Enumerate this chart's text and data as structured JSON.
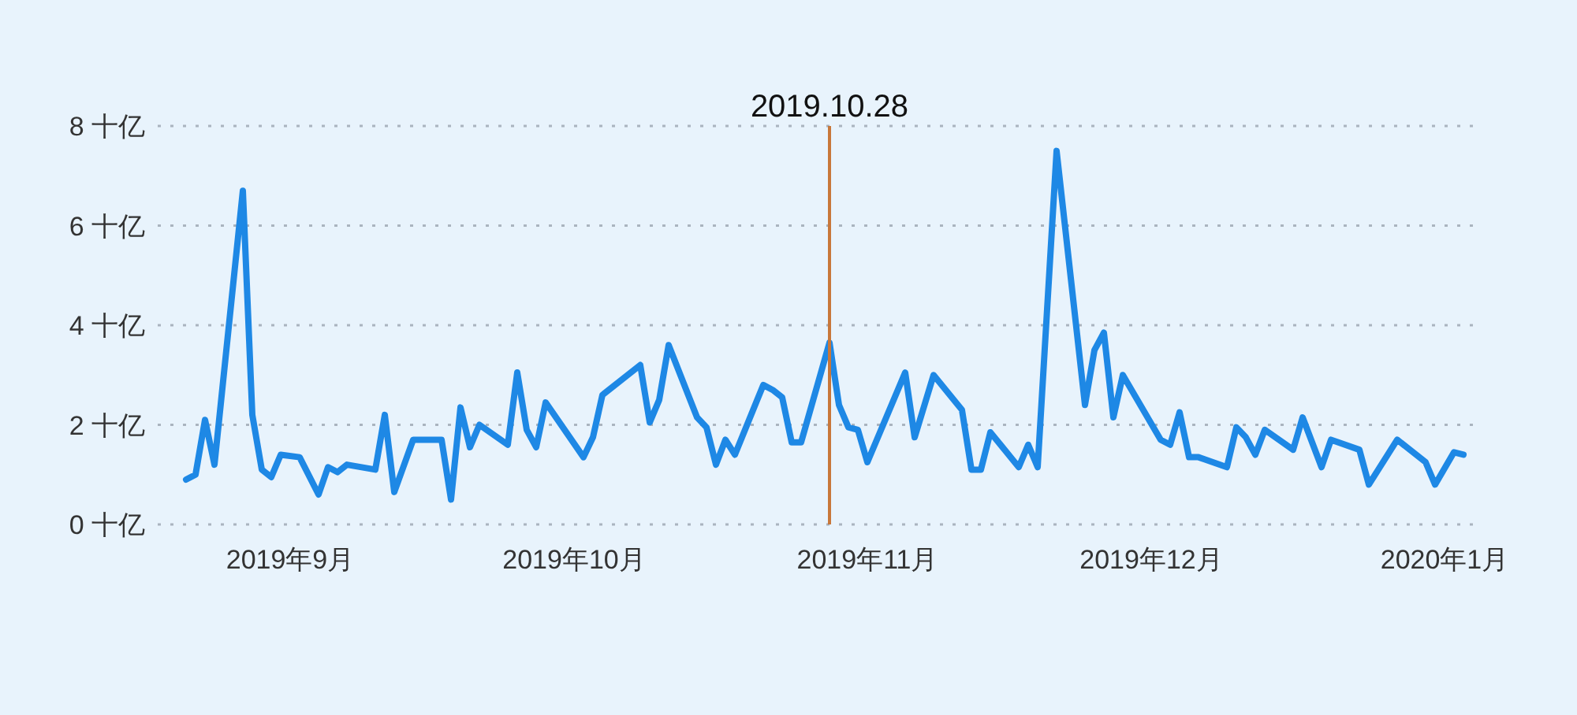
{
  "chart_data": {
    "type": "line",
    "x": [
      "2019-08-21",
      "2019-08-22",
      "2019-08-23",
      "2019-08-24",
      "2019-08-27",
      "2019-08-28",
      "2019-08-29",
      "2019-08-30",
      "2019-08-31",
      "2019-09-02",
      "2019-09-04",
      "2019-09-05",
      "2019-09-06",
      "2019-09-07",
      "2019-09-10",
      "2019-09-11",
      "2019-09-12",
      "2019-09-14",
      "2019-09-17",
      "2019-09-18",
      "2019-09-19",
      "2019-09-20",
      "2019-09-21",
      "2019-09-24",
      "2019-09-25",
      "2019-09-26",
      "2019-09-27",
      "2019-09-28",
      "2019-10-02",
      "2019-10-03",
      "2019-10-04",
      "2019-10-08",
      "2019-10-09",
      "2019-10-10",
      "2019-10-11",
      "2019-10-14",
      "2019-10-15",
      "2019-10-16",
      "2019-10-17",
      "2019-10-18",
      "2019-10-21",
      "2019-10-22",
      "2019-10-23",
      "2019-10-24",
      "2019-10-25",
      "2019-10-28",
      "2019-10-29",
      "2019-10-30",
      "2019-10-31",
      "2019-11-01",
      "2019-11-05",
      "2019-11-06",
      "2019-11-08",
      "2019-11-11",
      "2019-11-12",
      "2019-11-13",
      "2019-11-14",
      "2019-11-17",
      "2019-11-18",
      "2019-11-19",
      "2019-11-21",
      "2019-11-24",
      "2019-11-25",
      "2019-11-26",
      "2019-11-27",
      "2019-11-28",
      "2019-12-02",
      "2019-12-03",
      "2019-12-04",
      "2019-12-05",
      "2019-12-06",
      "2019-12-09",
      "2019-12-10",
      "2019-12-11",
      "2019-12-12",
      "2019-12-13",
      "2019-12-16",
      "2019-12-17",
      "2019-12-19",
      "2019-12-20",
      "2019-12-23",
      "2019-12-24",
      "2019-12-27",
      "2019-12-30",
      "2019-12-31",
      "2020-01-02",
      "2020-01-03"
    ],
    "series": [
      {
        "color": "#1e88e5",
        "values": [
          0.9,
          1.0,
          2.1,
          1.2,
          6.7,
          2.2,
          1.1,
          0.95,
          1.4,
          1.35,
          0.6,
          1.15,
          1.05,
          1.2,
          1.1,
          2.2,
          0.65,
          1.7,
          1.7,
          0.5,
          2.35,
          1.55,
          2.0,
          1.6,
          3.05,
          1.9,
          1.55,
          2.45,
          1.35,
          1.75,
          2.6,
          3.2,
          2.05,
          2.5,
          3.6,
          2.15,
          1.95,
          1.2,
          1.7,
          1.4,
          2.8,
          2.7,
          2.55,
          1.65,
          1.65,
          3.65,
          2.4,
          1.95,
          1.9,
          1.25,
          3.05,
          1.75,
          3.0,
          2.3,
          1.1,
          1.1,
          1.85,
          1.15,
          1.6,
          1.15,
          7.5,
          2.4,
          3.5,
          3.85,
          2.15,
          3.0,
          1.7,
          1.6,
          2.25,
          1.35,
          1.35,
          1.15,
          1.95,
          1.75,
          1.4,
          1.9,
          1.5,
          2.15,
          1.15,
          1.7,
          1.5,
          0.8,
          1.7,
          1.25,
          0.8,
          1.45,
          1.4
        ]
      }
    ],
    "xlim": [
      "2019-08-18",
      "2020-01-05"
    ],
    "xticks": [
      {
        "value": "2019-09-01",
        "label": "2019年9月"
      },
      {
        "value": "2019-10-01",
        "label": "2019年10月"
      },
      {
        "value": "2019-11-01",
        "label": "2019年11月"
      },
      {
        "value": "2019-12-01",
        "label": "2019年12月"
      },
      {
        "value": "2020-01-01",
        "label": "2020年1月"
      }
    ],
    "ylim": [
      0,
      8
    ],
    "yticks": [
      {
        "value": 0,
        "label": "0 十亿"
      },
      {
        "value": 2,
        "label": "2 十亿"
      },
      {
        "value": 4,
        "label": "4 十亿"
      },
      {
        "value": 6,
        "label": "6 十亿"
      },
      {
        "value": 8,
        "label": "8 十亿"
      }
    ],
    "grid": "y",
    "ref_lines": [
      {
        "axis": "x",
        "value": "2019-10-28",
        "label": "2019.10.28",
        "color": "#c8773a"
      }
    ]
  }
}
